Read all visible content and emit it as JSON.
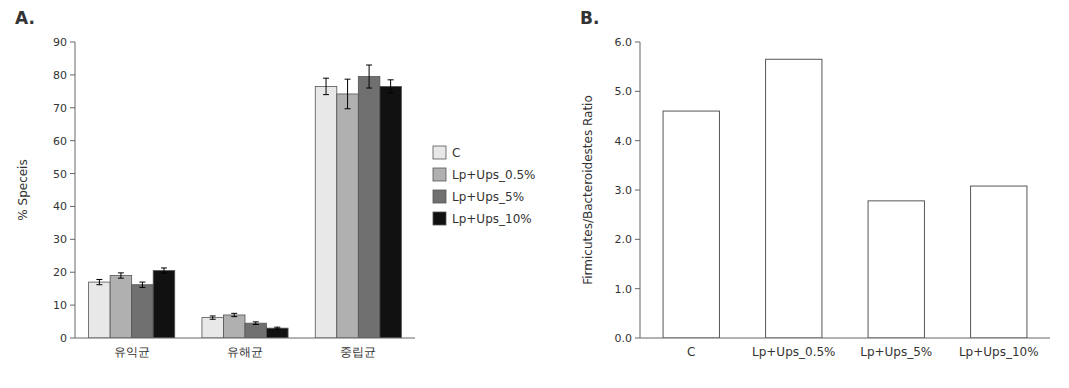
{
  "chart_data": [
    {
      "type": "bar",
      "title": "A.",
      "categories": [
        "유익균",
        "유해균",
        "중립균"
      ],
      "series": [
        {
          "name": "C",
          "color": "#e8e8e8",
          "values": [
            17.0,
            6.2,
            76.5
          ],
          "errors": [
            0.8,
            0.5,
            2.5
          ]
        },
        {
          "name": "Lp+Ups_0.5%",
          "color": "#b0b0b0",
          "values": [
            19.0,
            7.0,
            74.2
          ],
          "errors": [
            0.8,
            0.5,
            4.5
          ]
        },
        {
          "name": "Lp+Ups_5%",
          "color": "#707070",
          "values": [
            16.2,
            4.5,
            79.5
          ],
          "errors": [
            0.8,
            0.4,
            3.5
          ]
        },
        {
          "name": "Lp+Ups_10%",
          "color": "#111111",
          "values": [
            20.5,
            3.0,
            76.5
          ],
          "errors": [
            0.8,
            0.3,
            2.0
          ]
        }
      ],
      "ylabel": "% Speceis",
      "ylim": [
        0,
        90
      ],
      "yticks": [
        0,
        10,
        20,
        30,
        40,
        50,
        60,
        70,
        80,
        90
      ],
      "legend": "right",
      "grid": false
    },
    {
      "type": "bar",
      "title": "B.",
      "categories": [
        "C",
        "Lp+Ups_0.5%",
        "Lp+Ups_5%",
        "Lp+Ups_10%"
      ],
      "values": [
        4.6,
        5.65,
        2.78,
        3.08
      ],
      "color": "#ffffff",
      "ylabel": "Firmicutes/Bacteroidestes Ratio",
      "ylim": [
        0.0,
        6.0
      ],
      "yticks": [
        {
          "value": 0.0,
          "label": "0.0"
        },
        {
          "value": 1.0,
          "label": "1.0"
        },
        {
          "value": 2.0,
          "label": "2.0"
        },
        {
          "value": 3.0,
          "label": "3.0"
        },
        {
          "value": 4.0,
          "label": "4.0"
        },
        {
          "value": 5.0,
          "label": "5.0"
        },
        {
          "value": 6.0,
          "label": "6.0"
        }
      ],
      "grid": false
    }
  ]
}
